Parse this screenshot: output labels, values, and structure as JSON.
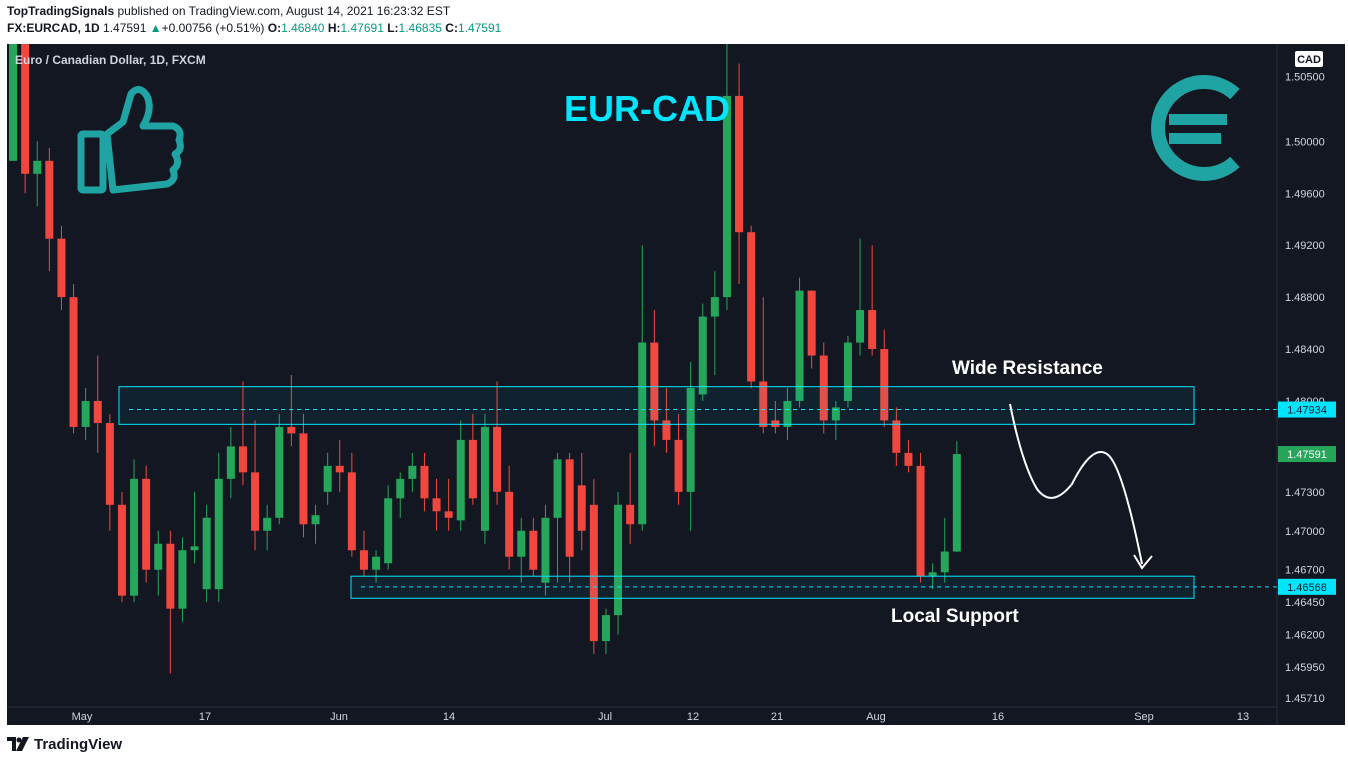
{
  "header": {
    "publisher": "TopTradingSignals",
    "published_text": "published on TradingView.com, August 14, 2021 16:23:32 EST",
    "symbol": "FX:EURCAD, 1D",
    "last": "1.47591",
    "change": "+0.00756 (+0.51%)",
    "o_label": "O:",
    "o_value": "1.46840",
    "h_label": "H:",
    "h_value": "1.47691",
    "l_label": "L:",
    "l_value": "1.46835",
    "c_label": "C:",
    "c_value": "1.47591"
  },
  "footer": {
    "brand": "TradingView"
  },
  "colors": {
    "background": "#131722",
    "up": "#26a65b",
    "down": "#f2473f",
    "zone": "#00e5ff",
    "accent_teal": "#1fa3a3",
    "title_cyan": "#00e5ff"
  },
  "icons": [
    "thumbs-up-icon",
    "euro-icon",
    "tradingview-logo-icon"
  ],
  "chart_data": {
    "type": "candlestick",
    "symbol_title": "Euro / Canadian Dollar, 1D, FXCM",
    "currency_badge": "CAD",
    "headline": "EUR-CAD",
    "ylim": [
      1.4565,
      1.5075
    ],
    "yticks": [
      "1.50500",
      "1.50000",
      "1.49600",
      "1.49200",
      "1.48800",
      "1.48400",
      "1.48000",
      "1.47300",
      "1.47000",
      "1.46700",
      "1.46450",
      "1.46200",
      "1.45950",
      "1.45710"
    ],
    "xticks": [
      "May",
      "17",
      "Jun",
      "14",
      "Jul",
      "12",
      "21",
      "Aug",
      "16",
      "Sep",
      "13"
    ],
    "price_labels": {
      "resistance": "1.47934",
      "current": "1.47591",
      "support": "1.46568"
    },
    "zones": [
      {
        "name": "Wide Resistance",
        "low": 1.4782,
        "high": 1.4811,
        "level": 1.47934
      },
      {
        "name": "Local Support",
        "low": 1.4648,
        "high": 1.4665,
        "level": 1.46568
      }
    ],
    "candles": [
      {
        "o": 1.4985,
        "h": 1.518,
        "l": 1.4985,
        "c": 1.513
      },
      {
        "o": 1.512,
        "h": 1.513,
        "l": 1.496,
        "c": 1.4975
      },
      {
        "o": 1.4975,
        "h": 1.5,
        "l": 1.495,
        "c": 1.4985
      },
      {
        "o": 1.4985,
        "h": 1.4995,
        "l": 1.49,
        "c": 1.4925
      },
      {
        "o": 1.4925,
        "h": 1.4935,
        "l": 1.487,
        "c": 1.488
      },
      {
        "o": 1.488,
        "h": 1.489,
        "l": 1.4775,
        "c": 1.478
      },
      {
        "o": 1.478,
        "h": 1.481,
        "l": 1.477,
        "c": 1.48
      },
      {
        "o": 1.48,
        "h": 1.4835,
        "l": 1.476,
        "c": 1.4783
      },
      {
        "o": 1.4783,
        "h": 1.479,
        "l": 1.47,
        "c": 1.472
      },
      {
        "o": 1.472,
        "h": 1.473,
        "l": 1.4645,
        "c": 1.465
      },
      {
        "o": 1.465,
        "h": 1.4755,
        "l": 1.4645,
        "c": 1.474
      },
      {
        "o": 1.474,
        "h": 1.475,
        "l": 1.466,
        "c": 1.467
      },
      {
        "o": 1.467,
        "h": 1.47,
        "l": 1.465,
        "c": 1.469
      },
      {
        "o": 1.469,
        "h": 1.47,
        "l": 1.459,
        "c": 1.464
      },
      {
        "o": 1.464,
        "h": 1.4695,
        "l": 1.463,
        "c": 1.4685
      },
      {
        "o": 1.4685,
        "h": 1.473,
        "l": 1.4675,
        "c": 1.4688
      },
      {
        "o": 1.4655,
        "h": 1.472,
        "l": 1.4645,
        "c": 1.471
      },
      {
        "o": 1.4655,
        "h": 1.476,
        "l": 1.4645,
        "c": 1.474
      },
      {
        "o": 1.474,
        "h": 1.478,
        "l": 1.4725,
        "c": 1.4765
      },
      {
        "o": 1.4765,
        "h": 1.4815,
        "l": 1.4735,
        "c": 1.4745
      },
      {
        "o": 1.4745,
        "h": 1.4785,
        "l": 1.4685,
        "c": 1.47
      },
      {
        "o": 1.47,
        "h": 1.472,
        "l": 1.4685,
        "c": 1.471
      },
      {
        "o": 1.471,
        "h": 1.479,
        "l": 1.4705,
        "c": 1.478
      },
      {
        "o": 1.478,
        "h": 1.482,
        "l": 1.4765,
        "c": 1.4775
      },
      {
        "o": 1.4775,
        "h": 1.479,
        "l": 1.4695,
        "c": 1.4705
      },
      {
        "o": 1.4705,
        "h": 1.472,
        "l": 1.469,
        "c": 1.4712
      },
      {
        "o": 1.473,
        "h": 1.476,
        "l": 1.472,
        "c": 1.475
      },
      {
        "o": 1.475,
        "h": 1.477,
        "l": 1.473,
        "c": 1.4745
      },
      {
        "o": 1.4745,
        "h": 1.476,
        "l": 1.468,
        "c": 1.4685
      },
      {
        "o": 1.4685,
        "h": 1.47,
        "l": 1.4665,
        "c": 1.467
      },
      {
        "o": 1.467,
        "h": 1.4685,
        "l": 1.466,
        "c": 1.468
      },
      {
        "o": 1.4675,
        "h": 1.4735,
        "l": 1.467,
        "c": 1.4725
      },
      {
        "o": 1.4725,
        "h": 1.4745,
        "l": 1.471,
        "c": 1.474
      },
      {
        "o": 1.474,
        "h": 1.476,
        "l": 1.473,
        "c": 1.475
      },
      {
        "o": 1.475,
        "h": 1.476,
        "l": 1.4715,
        "c": 1.4725
      },
      {
        "o": 1.4725,
        "h": 1.474,
        "l": 1.47,
        "c": 1.4715
      },
      {
        "o": 1.4715,
        "h": 1.474,
        "l": 1.47,
        "c": 1.471
      },
      {
        "o": 1.4708,
        "h": 1.4785,
        "l": 1.47,
        "c": 1.477
      },
      {
        "o": 1.477,
        "h": 1.479,
        "l": 1.472,
        "c": 1.4725
      },
      {
        "o": 1.47,
        "h": 1.479,
        "l": 1.469,
        "c": 1.478
      },
      {
        "o": 1.478,
        "h": 1.4815,
        "l": 1.472,
        "c": 1.473
      },
      {
        "o": 1.473,
        "h": 1.475,
        "l": 1.467,
        "c": 1.468
      },
      {
        "o": 1.468,
        "h": 1.471,
        "l": 1.466,
        "c": 1.47
      },
      {
        "o": 1.47,
        "h": 1.471,
        "l": 1.4665,
        "c": 1.467
      },
      {
        "o": 1.466,
        "h": 1.472,
        "l": 1.465,
        "c": 1.471
      },
      {
        "o": 1.471,
        "h": 1.476,
        "l": 1.466,
        "c": 1.4755
      },
      {
        "o": 1.4755,
        "h": 1.476,
        "l": 1.466,
        "c": 1.468
      },
      {
        "o": 1.4735,
        "h": 1.476,
        "l": 1.4685,
        "c": 1.47
      },
      {
        "o": 1.472,
        "h": 1.474,
        "l": 1.4605,
        "c": 1.4615
      },
      {
        "o": 1.4615,
        "h": 1.464,
        "l": 1.4605,
        "c": 1.4635
      },
      {
        "o": 1.4635,
        "h": 1.473,
        "l": 1.462,
        "c": 1.472
      },
      {
        "o": 1.472,
        "h": 1.476,
        "l": 1.469,
        "c": 1.4705
      },
      {
        "o": 1.4705,
        "h": 1.492,
        "l": 1.47,
        "c": 1.4845
      },
      {
        "o": 1.4845,
        "h": 1.487,
        "l": 1.4765,
        "c": 1.4785
      },
      {
        "o": 1.4785,
        "h": 1.481,
        "l": 1.476,
        "c": 1.477
      },
      {
        "o": 1.477,
        "h": 1.479,
        "l": 1.472,
        "c": 1.473
      },
      {
        "o": 1.473,
        "h": 1.483,
        "l": 1.47,
        "c": 1.481
      },
      {
        "o": 1.4805,
        "h": 1.4875,
        "l": 1.48,
        "c": 1.4865
      },
      {
        "o": 1.4865,
        "h": 1.49,
        "l": 1.482,
        "c": 1.488
      },
      {
        "o": 1.488,
        "h": 1.509,
        "l": 1.487,
        "c": 1.5035
      },
      {
        "o": 1.5035,
        "h": 1.506,
        "l": 1.489,
        "c": 1.493
      },
      {
        "o": 1.493,
        "h": 1.4935,
        "l": 1.481,
        "c": 1.4815
      },
      {
        "o": 1.4815,
        "h": 1.488,
        "l": 1.4775,
        "c": 1.478
      },
      {
        "o": 1.4785,
        "h": 1.48,
        "l": 1.4775,
        "c": 1.478
      },
      {
        "o": 1.478,
        "h": 1.481,
        "l": 1.477,
        "c": 1.48
      },
      {
        "o": 1.48,
        "h": 1.4895,
        "l": 1.4795,
        "c": 1.4885
      },
      {
        "o": 1.4885,
        "h": 1.4885,
        "l": 1.4825,
        "c": 1.4835
      },
      {
        "o": 1.4835,
        "h": 1.4845,
        "l": 1.4775,
        "c": 1.4785
      },
      {
        "o": 1.4785,
        "h": 1.48,
        "l": 1.477,
        "c": 1.4795
      },
      {
        "o": 1.48,
        "h": 1.485,
        "l": 1.4795,
        "c": 1.4845
      },
      {
        "o": 1.4845,
        "h": 1.4925,
        "l": 1.4835,
        "c": 1.487
      },
      {
        "o": 1.487,
        "h": 1.492,
        "l": 1.4835,
        "c": 1.484
      },
      {
        "o": 1.484,
        "h": 1.4855,
        "l": 1.478,
        "c": 1.4785
      },
      {
        "o": 1.4785,
        "h": 1.4795,
        "l": 1.475,
        "c": 1.476
      },
      {
        "o": 1.476,
        "h": 1.477,
        "l": 1.4745,
        "c": 1.475
      },
      {
        "o": 1.475,
        "h": 1.476,
        "l": 1.466,
        "c": 1.4665
      },
      {
        "o": 1.4665,
        "h": 1.4675,
        "l": 1.4655,
        "c": 1.4668
      },
      {
        "o": 1.4668,
        "h": 1.471,
        "l": 1.466,
        "c": 1.4684
      },
      {
        "o": 1.4684,
        "h": 1.4769,
        "l": 1.46835,
        "c": 1.47591
      }
    ]
  }
}
